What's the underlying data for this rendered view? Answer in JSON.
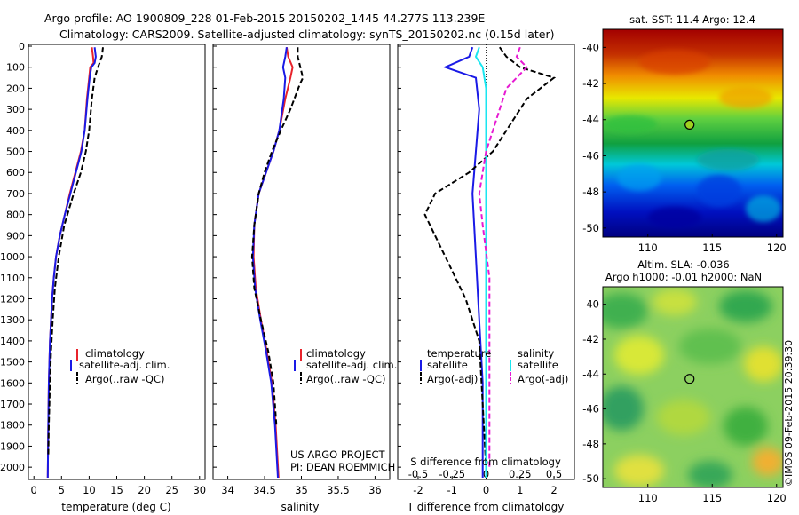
{
  "title_line1": "Argo profile: AO 1900809_228 01-Feb-2015 20150202_1445 44.277S 113.239E",
  "title_line2": "Climatology: CARS2009. Satellite-adjusted climatology: synTS_20150202.nc (0.15d later)",
  "colors": {
    "climatology": "#e8232b",
    "satellite": "#1a1ae6",
    "argo": "#000000",
    "cyan": "#19e6f0",
    "magenta": "#e619d2"
  },
  "depth_ticks": [
    "0",
    "100",
    "200",
    "300",
    "400",
    "500",
    "600",
    "700",
    "800",
    "900",
    "1000",
    "1100",
    "1200",
    "1300",
    "1400",
    "1500",
    "1600",
    "1700",
    "1800",
    "1900",
    "2000"
  ],
  "chart_data": [
    {
      "type": "line",
      "panel": "temperature",
      "xlabel": "temperature (deg C)",
      "xlim": [
        -1,
        31
      ],
      "ylim": [
        2050,
        0
      ],
      "xticks": [
        "0",
        "5",
        "10",
        "15",
        "20",
        "25",
        "30"
      ],
      "legend": [
        "climatology",
        "satellite-adj. clim.",
        "Argo(..raw -QC)"
      ],
      "series": [
        {
          "name": "climatology",
          "color": "red",
          "x": [
            10.5,
            10.7,
            10.8,
            10.2,
            10.0,
            9.6,
            9.2,
            8.5,
            7.5,
            6.5,
            5.6,
            4.7,
            4.0,
            3.6,
            3.3,
            3.1,
            2.9,
            2.7,
            2.6,
            2.5
          ],
          "y": [
            5,
            50,
            80,
            100,
            150,
            250,
            400,
            500,
            600,
            700,
            800,
            900,
            1000,
            1100,
            1200,
            1300,
            1400,
            1600,
            1800,
            2050
          ]
        },
        {
          "name": "satellite-adj. clim.",
          "color": "blue",
          "x": [
            11.0,
            11.2,
            11.0,
            10.4,
            10.1,
            9.7,
            9.2,
            8.6,
            7.6,
            6.6,
            5.6,
            4.7,
            4.0,
            3.6,
            3.3,
            3.1,
            2.9,
            2.7,
            2.6,
            2.5
          ],
          "y": [
            5,
            50,
            80,
            100,
            150,
            250,
            400,
            500,
            600,
            700,
            800,
            900,
            1000,
            1100,
            1200,
            1300,
            1400,
            1600,
            1800,
            2050
          ]
        },
        {
          "name": "Argo(..raw -QC)",
          "color": "black",
          "dash": true,
          "x": [
            12.5,
            12.3,
            11.6,
            11.0,
            10.5,
            10.0,
            9.4,
            8.5,
            7.2,
            5.5,
            4.5,
            3.8,
            3.4,
            3.1,
            2.9,
            2.7,
            2.6
          ],
          "y": [
            5,
            50,
            100,
            150,
            250,
            400,
            500,
            600,
            700,
            850,
            1000,
            1150,
            1300,
            1450,
            1600,
            1800,
            1950
          ]
        }
      ]
    },
    {
      "type": "line",
      "panel": "salinity",
      "xlabel": "salinity",
      "xlim": [
        33.8,
        36.2
      ],
      "ylim": [
        2050,
        0
      ],
      "xticks": [
        "34",
        "34.5",
        "35",
        "35.5",
        "36"
      ],
      "legend": [
        "climatology",
        "satellite-adj. clim.",
        "Argo(..raw -QC)"
      ],
      "annotation": [
        "US ARGO PROJECT",
        "PI: DEAN ROEMMICH"
      ],
      "series": [
        {
          "name": "climatology",
          "color": "red",
          "x": [
            34.8,
            34.82,
            34.88,
            34.85,
            34.78,
            34.7,
            34.62,
            34.52,
            34.42,
            34.36,
            34.35,
            34.38,
            34.45,
            34.53,
            34.6,
            34.65,
            34.69
          ],
          "y": [
            5,
            50,
            100,
            150,
            250,
            400,
            500,
            600,
            700,
            850,
            1000,
            1150,
            1300,
            1450,
            1600,
            1800,
            2050
          ]
        },
        {
          "name": "satellite-adj. clim.",
          "color": "blue",
          "x": [
            34.8,
            34.78,
            34.75,
            34.78,
            34.76,
            34.7,
            34.62,
            34.52,
            34.42,
            34.36,
            34.34,
            34.37,
            34.44,
            34.52,
            34.59,
            34.64,
            34.68
          ],
          "y": [
            5,
            50,
            100,
            150,
            250,
            400,
            500,
            600,
            700,
            850,
            1000,
            1150,
            1300,
            1450,
            1600,
            1800,
            2050
          ]
        },
        {
          "name": "Argo(..raw -QC)",
          "color": "black",
          "dash": true,
          "x": [
            34.95,
            34.95,
            35.02,
            34.98,
            34.85,
            34.72,
            34.6,
            34.5,
            34.42,
            34.36,
            34.33,
            34.36,
            34.45,
            34.55,
            34.62,
            34.66
          ],
          "y": [
            5,
            50,
            150,
            180,
            300,
            400,
            500,
            600,
            700,
            850,
            1000,
            1150,
            1300,
            1450,
            1600,
            1800
          ]
        }
      ]
    },
    {
      "type": "line",
      "panel": "difference",
      "xlabel": "T difference from climatology",
      "xlabel_top": "S difference from climatology",
      "xlim": [
        -2.6,
        2.6
      ],
      "ylim": [
        2050,
        0
      ],
      "xticks": [
        "-2",
        "-1",
        "0",
        "1",
        "2"
      ],
      "xticks_top": [
        "-0.5",
        "-0.25",
        "0",
        "0.25",
        "0.5"
      ],
      "legend_left_title": "temperature",
      "legend_right_title": "salinity",
      "legend": [
        "satellite",
        "Argo(-adj)",
        "satellite",
        "Argo(-adj)"
      ],
      "series": [
        {
          "name": "satellite",
          "color": "blue",
          "x": [
            -0.4,
            -0.5,
            -1.2,
            -0.3,
            -0.2,
            -0.3,
            -0.4,
            -0.3,
            -0.2,
            -0.1,
            -0.1
          ],
          "y": [
            5,
            50,
            100,
            150,
            300,
            500,
            700,
            1000,
            1300,
            1600,
            2050
          ]
        },
        {
          "name": "Argo(-adj)",
          "color": "black",
          "dash": true,
          "x": [
            0.4,
            0.6,
            1.0,
            2.0,
            1.2,
            0.2,
            -0.5,
            -1.5,
            -1.8,
            -1.2,
            -0.6,
            -0.2,
            -0.1,
            0.0
          ],
          "y": [
            5,
            50,
            100,
            150,
            250,
            500,
            600,
            700,
            800,
            1000,
            1200,
            1400,
            1700,
            2000
          ]
        },
        {
          "name": "satellite",
          "color": "cyan",
          "x": [
            -0.2,
            -0.3,
            -0.1,
            0.0,
            0.0,
            0.0,
            0.0,
            0.0
          ],
          "y": [
            5,
            50,
            100,
            200,
            500,
            1000,
            1500,
            2050
          ]
        },
        {
          "name": "Argo(-adj)",
          "color": "magenta",
          "dash": true,
          "x": [
            1.0,
            0.9,
            1.2,
            0.6,
            0.3,
            0.0,
            -0.2,
            -0.1,
            0.1,
            0.1,
            0.1
          ],
          "y": [
            5,
            50,
            100,
            200,
            350,
            500,
            700,
            850,
            1100,
            1500,
            2000
          ]
        }
      ]
    }
  ],
  "sst_map": {
    "title": "sat. SST: 11.4 Argo: 12.4",
    "xticks": [
      "110",
      "115",
      "120"
    ],
    "yticks": [
      "-40",
      "-42",
      "-44",
      "-46",
      "-48",
      "-50"
    ],
    "argo_lon": 113.239,
    "argo_lat": -44.277
  },
  "sla_map": {
    "title_line1": "Altim. SLA: -0.036",
    "title_line2": "Argo h1000: -0.01 h2000: NaN",
    "xticks": [
      "110",
      "115",
      "120"
    ],
    "yticks": [
      "-40",
      "-42",
      "-44",
      "-46",
      "-48",
      "-50"
    ],
    "argo_lon": 113.239,
    "argo_lat": -44.277
  },
  "watermark": "©IMOS 09-Feb-2015 20:39:30"
}
